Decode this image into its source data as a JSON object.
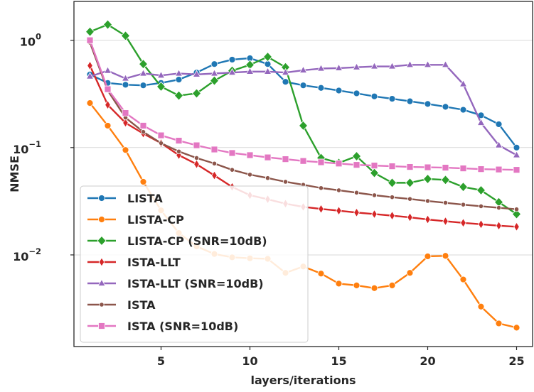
{
  "chart_data": {
    "type": "line",
    "title": "",
    "xlabel": "layers/iterations",
    "ylabel": "NMSE",
    "yscale": "log",
    "xlim": [
      0.1,
      25.9
    ],
    "ylim": [
      0.0014,
      2.3
    ],
    "xticks": [
      5,
      10,
      15,
      20,
      25
    ],
    "xtick_labels": [
      "5",
      "10",
      "15",
      "20",
      "25"
    ],
    "yticks": [
      0.01,
      0.1,
      1
    ],
    "ytick_labels": [
      "10",
      "10",
      "10"
    ],
    "ytick_exponents": [
      "−2",
      "−1",
      "0"
    ],
    "grid": true,
    "legend_position": "lower-left",
    "x": [
      1,
      2,
      3,
      4,
      5,
      6,
      7,
      8,
      9,
      10,
      11,
      12,
      13,
      14,
      15,
      16,
      17,
      18,
      19,
      20,
      21,
      22,
      23,
      24,
      25
    ],
    "series": [
      {
        "name": "LISTA",
        "color": "#1f77b4",
        "marker": "circle",
        "values": [
          0.48,
          0.4,
          0.385,
          0.38,
          0.4,
          0.43,
          0.5,
          0.6,
          0.66,
          0.68,
          0.6,
          0.41,
          0.38,
          0.36,
          0.34,
          0.32,
          0.3,
          0.285,
          0.27,
          0.255,
          0.24,
          0.225,
          0.2,
          0.165,
          0.1
        ]
      },
      {
        "name": "LISTA-CP",
        "color": "#ff7f0e",
        "marker": "circle",
        "values": [
          0.26,
          0.16,
          0.095,
          0.048,
          0.026,
          0.016,
          0.012,
          0.0102,
          0.0095,
          0.0093,
          0.0092,
          0.0068,
          0.0078,
          0.0067,
          0.0054,
          0.0052,
          0.0049,
          0.0052,
          0.0068,
          0.0097,
          0.0098,
          0.0059,
          0.0033,
          0.0023,
          0.0021
        ]
      },
      {
        "name": "LISTA-CP (SNR=10dB)",
        "color": "#2ca02c",
        "marker": "diamond",
        "values": [
          1.2,
          1.4,
          1.1,
          0.6,
          0.37,
          0.305,
          0.32,
          0.42,
          0.52,
          0.59,
          0.7,
          0.56,
          0.16,
          0.08,
          0.072,
          0.083,
          0.058,
          0.047,
          0.047,
          0.051,
          0.05,
          0.043,
          0.04,
          0.031,
          0.024
        ]
      },
      {
        "name": "ISTA-LLT",
        "color": "#d62728",
        "marker": "thin-diamond",
        "values": [
          0.58,
          0.25,
          0.17,
          0.135,
          0.11,
          0.085,
          0.07,
          0.055,
          0.043,
          0.036,
          0.033,
          0.03,
          0.028,
          0.0268,
          0.0258,
          0.0248,
          0.024,
          0.0232,
          0.0224,
          0.0214,
          0.0206,
          0.0199,
          0.0193,
          0.0187,
          0.0183
        ]
      },
      {
        "name": "ISTA-LLT (SNR=10dB)",
        "color": "#9467bd",
        "marker": "triangle",
        "values": [
          0.46,
          0.52,
          0.44,
          0.49,
          0.47,
          0.49,
          0.48,
          0.49,
          0.5,
          0.51,
          0.51,
          0.5,
          0.525,
          0.545,
          0.55,
          0.56,
          0.57,
          0.57,
          0.59,
          0.59,
          0.59,
          0.39,
          0.17,
          0.105,
          0.085
        ]
      },
      {
        "name": "ISTA",
        "color": "#8c564b",
        "marker": "hexagon",
        "values": [
          0.95,
          0.34,
          0.19,
          0.14,
          0.11,
          0.092,
          0.08,
          0.071,
          0.062,
          0.056,
          0.052,
          0.048,
          0.045,
          0.042,
          0.04,
          0.038,
          0.036,
          0.0345,
          0.0332,
          0.0318,
          0.0306,
          0.0294,
          0.0284,
          0.0275,
          0.0266
        ]
      },
      {
        "name": "ISTA (SNR=10dB)",
        "color": "#e377c2",
        "marker": "square",
        "values": [
          1.0,
          0.35,
          0.21,
          0.16,
          0.13,
          0.116,
          0.105,
          0.096,
          0.089,
          0.085,
          0.081,
          0.078,
          0.075,
          0.073,
          0.071,
          0.069,
          0.068,
          0.067,
          0.066,
          0.0655,
          0.065,
          0.064,
          0.063,
          0.0625,
          0.062
        ]
      }
    ]
  }
}
